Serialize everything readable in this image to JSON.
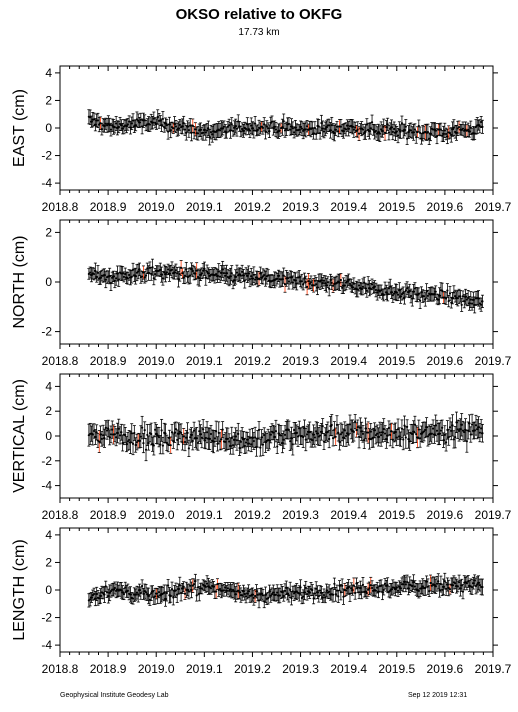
{
  "header": {
    "title": "OKSO relative to OKFG",
    "subtitle": "17.73 km"
  },
  "footer": {
    "left": "Geophysical Institute Geodesy Lab",
    "right": "Sep 12 2019 12:31"
  },
  "colors": {
    "points": "#000000",
    "outliers": "#ff3300",
    "axes": "#000000"
  },
  "chart_data": [
    {
      "type": "scatter",
      "ylabel": "EAST (cm)",
      "xlim": [
        2018.8,
        2019.7
      ],
      "ylim": [
        -4.5,
        4.5
      ],
      "xticks": [
        "2018.8",
        "2018.9",
        "2019.0",
        "2019.1",
        "2019.2",
        "2019.3",
        "2019.4",
        "2019.5",
        "2019.6",
        "2019.7"
      ],
      "yticks": [
        "-4",
        "-2",
        "0",
        "2",
        "4"
      ],
      "series": [
        {
          "name": "",
          "trend": [
            [
              2018.86,
              0.6
            ],
            [
              2018.9,
              0.1
            ],
            [
              2019.0,
              0.4
            ],
            [
              2019.1,
              -0.3
            ],
            [
              2019.2,
              0.1
            ],
            [
              2019.3,
              -0.1
            ],
            [
              2019.4,
              0.0
            ],
            [
              2019.5,
              -0.2
            ],
            [
              2019.6,
              -0.3
            ],
            [
              2019.68,
              0.0
            ]
          ]
        }
      ]
    },
    {
      "type": "scatter",
      "ylabel": "NORTH (cm)",
      "xlim": [
        2018.8,
        2019.7
      ],
      "ylim": [
        -2.5,
        2.5
      ],
      "xticks": [
        "2018.8",
        "2018.9",
        "2019.0",
        "2019.1",
        "2019.2",
        "2019.3",
        "2019.4",
        "2019.5",
        "2019.6",
        "2019.7"
      ],
      "yticks": [
        "-2",
        "0",
        "2"
      ],
      "series": [
        {
          "name": "",
          "trend": [
            [
              2018.86,
              0.3
            ],
            [
              2018.9,
              0.2
            ],
            [
              2019.0,
              0.4
            ],
            [
              2019.1,
              0.3
            ],
            [
              2019.2,
              0.2
            ],
            [
              2019.3,
              0.0
            ],
            [
              2019.4,
              -0.1
            ],
            [
              2019.5,
              -0.4
            ],
            [
              2019.6,
              -0.6
            ],
            [
              2019.68,
              -0.8
            ]
          ]
        }
      ]
    },
    {
      "type": "scatter",
      "ylabel": "VERTICAL (cm)",
      "xlim": [
        2018.8,
        2019.7
      ],
      "ylim": [
        -5,
        5
      ],
      "xticks": [
        "2018.8",
        "2018.9",
        "2019.0",
        "2019.1",
        "2019.2",
        "2019.3",
        "2019.4",
        "2019.5",
        "2019.6",
        "2019.7"
      ],
      "yticks": [
        "-4",
        "-2",
        "0",
        "2",
        "4"
      ],
      "series": [
        {
          "name": "",
          "trend": [
            [
              2018.86,
              0.0
            ],
            [
              2018.9,
              0.2
            ],
            [
              2019.0,
              -0.3
            ],
            [
              2019.1,
              0.0
            ],
            [
              2019.2,
              -0.4
            ],
            [
              2019.3,
              0.1
            ],
            [
              2019.4,
              0.3
            ],
            [
              2019.5,
              0.2
            ],
            [
              2019.6,
              0.4
            ],
            [
              2019.68,
              0.6
            ]
          ]
        }
      ]
    },
    {
      "type": "scatter",
      "ylabel": "LENGTH (cm)",
      "xlim": [
        2018.8,
        2019.7
      ],
      "ylim": [
        -4.5,
        4.5
      ],
      "xticks": [
        "2018.8",
        "2018.9",
        "2019.0",
        "2019.1",
        "2019.2",
        "2019.3",
        "2019.4",
        "2019.5",
        "2019.6",
        "2019.7"
      ],
      "yticks": [
        "-4",
        "-2",
        "0",
        "2",
        "4"
      ],
      "series": [
        {
          "name": "",
          "trend": [
            [
              2018.86,
              -0.5
            ],
            [
              2018.9,
              0.0
            ],
            [
              2019.0,
              -0.4
            ],
            [
              2019.1,
              0.3
            ],
            [
              2019.2,
              -0.4
            ],
            [
              2019.3,
              -0.2
            ],
            [
              2019.4,
              0.0
            ],
            [
              2019.5,
              0.2
            ],
            [
              2019.6,
              0.4
            ],
            [
              2019.68,
              0.4
            ]
          ]
        }
      ]
    }
  ]
}
